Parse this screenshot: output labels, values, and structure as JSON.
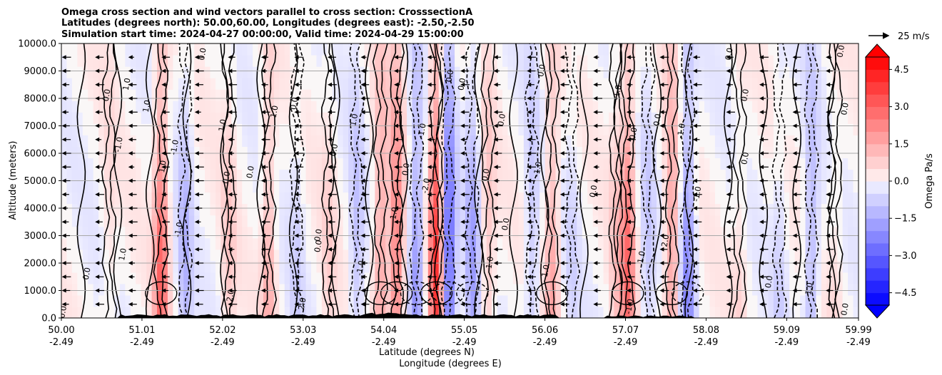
{
  "chart_data": {
    "type": "heatmap",
    "title_lines": [
      "Omega cross section and wind vectors parallel to cross section: CrosssectionA",
      "Latitudes (degrees north): 50.00,60.00, Longitudes (degrees east): -2.50,-2.50",
      "Simulation start time: 2024-04-27 00:00:00, Valid time: 2024-04-29 15:00:00"
    ],
    "ylabel": "Altitude (meters)",
    "xlabel_lat": "Latitude (degrees N)",
    "xlabel_lon": "Longitude (degrees E)",
    "ylim": [
      0,
      10000
    ],
    "y_ticks": [
      {
        "value": 0,
        "label": "0.0"
      },
      {
        "value": 1000,
        "label": "1000.0"
      },
      {
        "value": 2000,
        "label": "2000.0"
      },
      {
        "value": 3000,
        "label": "3000.0"
      },
      {
        "value": 4000,
        "label": "4000.0"
      },
      {
        "value": 5000,
        "label": "5000.0"
      },
      {
        "value": 6000,
        "label": "6000.0"
      },
      {
        "value": 7000,
        "label": "7000.0"
      },
      {
        "value": 8000,
        "label": "8000.0"
      },
      {
        "value": 9000,
        "label": "9000.0"
      },
      {
        "value": 10000,
        "label": "10000.0"
      }
    ],
    "xlim": [
      50.0,
      59.99
    ],
    "x_ticks": [
      {
        "value": 50.0,
        "lat": "50.00",
        "lon": "-2.49"
      },
      {
        "value": 51.01,
        "lat": "51.01",
        "lon": "-2.49"
      },
      {
        "value": 52.02,
        "lat": "52.02",
        "lon": "-2.49"
      },
      {
        "value": 53.03,
        "lat": "53.03",
        "lon": "-2.49"
      },
      {
        "value": 54.04,
        "lat": "54.04",
        "lon": "-2.49"
      },
      {
        "value": 55.05,
        "lat": "55.05",
        "lon": "-2.49"
      },
      {
        "value": 56.06,
        "lat": "56.06",
        "lon": "-2.49"
      },
      {
        "value": 57.07,
        "lat": "57.07",
        "lon": "-2.49"
      },
      {
        "value": 58.08,
        "lat": "58.08",
        "lon": "-2.49"
      },
      {
        "value": 59.09,
        "lat": "59.09",
        "lon": "-2.49"
      },
      {
        "value": 59.99,
        "lat": "59.99",
        "lon": "-2.49"
      }
    ],
    "colorbar": {
      "label": "Omega Pa/s",
      "range": [
        -5.0,
        5.0
      ],
      "levels": 20,
      "ticks": [
        {
          "value": 4.5,
          "label": "4.5"
        },
        {
          "value": 3.0,
          "label": "3.0"
        },
        {
          "value": 1.5,
          "label": "1.5"
        },
        {
          "value": 0.0,
          "label": "0.0"
        },
        {
          "value": -1.5,
          "label": "−1.5"
        },
        {
          "value": -3.0,
          "label": "−3.0"
        },
        {
          "value": -4.5,
          "label": "−4.5"
        }
      ]
    },
    "quiver_key": {
      "label": "25 m/s",
      "value": 25
    },
    "features": [
      {
        "lat": 50.6,
        "strength": 0.5
      },
      {
        "lat": 51.25,
        "strength": 2.8
      },
      {
        "lat": 51.55,
        "strength": -1.2
      },
      {
        "lat": 52.1,
        "strength": 0.8
      },
      {
        "lat": 52.6,
        "strength": 1.4
      },
      {
        "lat": 52.95,
        "strength": -0.6
      },
      {
        "lat": 53.35,
        "strength": 0.6
      },
      {
        "lat": 53.7,
        "strength": -1.0
      },
      {
        "lat": 54.0,
        "strength": 1.8
      },
      {
        "lat": 54.2,
        "strength": 2.5
      },
      {
        "lat": 54.45,
        "strength": -2.0
      },
      {
        "lat": 54.7,
        "strength": 3.8
      },
      {
        "lat": 54.85,
        "strength": -3.2
      },
      {
        "lat": 55.15,
        "strength": -1.6
      },
      {
        "lat": 55.35,
        "strength": 1.0
      },
      {
        "lat": 55.9,
        "strength": -1.0
      },
      {
        "lat": 56.15,
        "strength": 1.6
      },
      {
        "lat": 56.4,
        "strength": -0.5
      },
      {
        "lat": 56.95,
        "strength": 0.8
      },
      {
        "lat": 57.1,
        "strength": 2.6
      },
      {
        "lat": 57.35,
        "strength": -0.8
      },
      {
        "lat": 57.65,
        "strength": 1.9
      },
      {
        "lat": 57.85,
        "strength": -2.2
      },
      {
        "lat": 58.5,
        "strength": 0.5
      },
      {
        "lat": 59.0,
        "strength": -0.6
      },
      {
        "lat": 59.4,
        "strength": -1.4
      },
      {
        "lat": 59.7,
        "strength": 0.4
      }
    ],
    "contour_labels": [
      {
        "text": "0.0",
        "lat": 50.05,
        "alt": 200
      },
      {
        "text": "1.0",
        "lat": 50.85,
        "alt": 8500
      },
      {
        "text": "0.0",
        "lat": 50.6,
        "alt": 8100
      },
      {
        "text": "-1.0",
        "lat": 50.75,
        "alt": 6300
      },
      {
        "text": "1.0",
        "lat": 51.1,
        "alt": 7700
      },
      {
        "text": "-1.0",
        "lat": 51.45,
        "alt": 6200
      },
      {
        "text": "1.0",
        "lat": 51.3,
        "alt": 5500
      },
      {
        "text": "-1.0",
        "lat": 51.5,
        "alt": 3200
      },
      {
        "text": "1.0",
        "lat": 50.8,
        "alt": 2300
      },
      {
        "text": "0.0",
        "lat": 50.35,
        "alt": 1600
      },
      {
        "text": "0.0",
        "lat": 51.8,
        "alt": 9600
      },
      {
        "text": "1.0",
        "lat": 52.05,
        "alt": 7000
      },
      {
        "text": "0.0",
        "lat": 52.1,
        "alt": 5100
      },
      {
        "text": "0.0",
        "lat": 52.4,
        "alt": 5300
      },
      {
        "text": "1.0",
        "lat": 52.7,
        "alt": 7500
      },
      {
        "text": "0.0",
        "lat": 52.95,
        "alt": 7800
      },
      {
        "text": "2.0",
        "lat": 52.15,
        "alt": 800
      },
      {
        "text": "0.0",
        "lat": 53.25,
        "alt": 2600
      },
      {
        "text": "0.0",
        "lat": 53.25,
        "alt": 3000
      },
      {
        "text": "1.0",
        "lat": 53.7,
        "alt": 7200
      },
      {
        "text": "0.0",
        "lat": 53.45,
        "alt": 6100
      },
      {
        "text": "2.0",
        "lat": 53.05,
        "alt": 500
      },
      {
        "text": "-1.0",
        "lat": 53.78,
        "alt": 1800
      },
      {
        "text": "1.0",
        "lat": 54.2,
        "alt": 3800
      },
      {
        "text": "0.0",
        "lat": 54.35,
        "alt": 5400
      },
      {
        "text": "-1.0",
        "lat": 54.55,
        "alt": 6800
      },
      {
        "text": "0.0",
        "lat": 54.9,
        "alt": 8800
      },
      {
        "text": "-2.0",
        "lat": 54.6,
        "alt": 4800
      },
      {
        "text": "0.0",
        "lat": 55.05,
        "alt": 8500
      },
      {
        "text": "0.0",
        "lat": 55.35,
        "alt": 5200
      },
      {
        "text": "1.0",
        "lat": 55.4,
        "alt": 2000
      },
      {
        "text": "0.0",
        "lat": 55.6,
        "alt": 3400
      },
      {
        "text": "0.0",
        "lat": 55.55,
        "alt": 7200
      },
      {
        "text": "0.0",
        "lat": 56.05,
        "alt": 9000
      },
      {
        "text": "-1.0",
        "lat": 56.0,
        "alt": 5400
      },
      {
        "text": "1.0",
        "lat": 56.1,
        "alt": 1700
      },
      {
        "text": "0.0",
        "lat": 56.7,
        "alt": 4600
      },
      {
        "text": "0.0",
        "lat": 57.2,
        "alt": 6700
      },
      {
        "text": "-1.0",
        "lat": 57.0,
        "alt": 8200
      },
      {
        "text": "1.0",
        "lat": 57.3,
        "alt": 2200
      },
      {
        "text": "2.0",
        "lat": 57.6,
        "alt": 2800
      },
      {
        "text": "-1.0",
        "lat": 57.15,
        "alt": 400
      },
      {
        "text": "-1.0",
        "lat": 57.8,
        "alt": 6800
      },
      {
        "text": "0.0",
        "lat": 57.5,
        "alt": 7200
      },
      {
        "text": "0.0",
        "lat": 58.4,
        "alt": 9600
      },
      {
        "text": "0.0",
        "lat": 58.6,
        "alt": 8100
      },
      {
        "text": "0.0",
        "lat": 58.6,
        "alt": 5800
      },
      {
        "text": "-1.0",
        "lat": 58.0,
        "alt": 4500
      },
      {
        "text": "0.0",
        "lat": 58.9,
        "alt": 1300
      },
      {
        "text": "-1.0",
        "lat": 59.4,
        "alt": 1000
      },
      {
        "text": "0.0",
        "lat": 59.85,
        "alt": 300
      },
      {
        "text": "0.0",
        "lat": 59.85,
        "alt": 7600
      },
      {
        "text": "0.0",
        "lat": 59.8,
        "alt": 9700
      }
    ]
  }
}
